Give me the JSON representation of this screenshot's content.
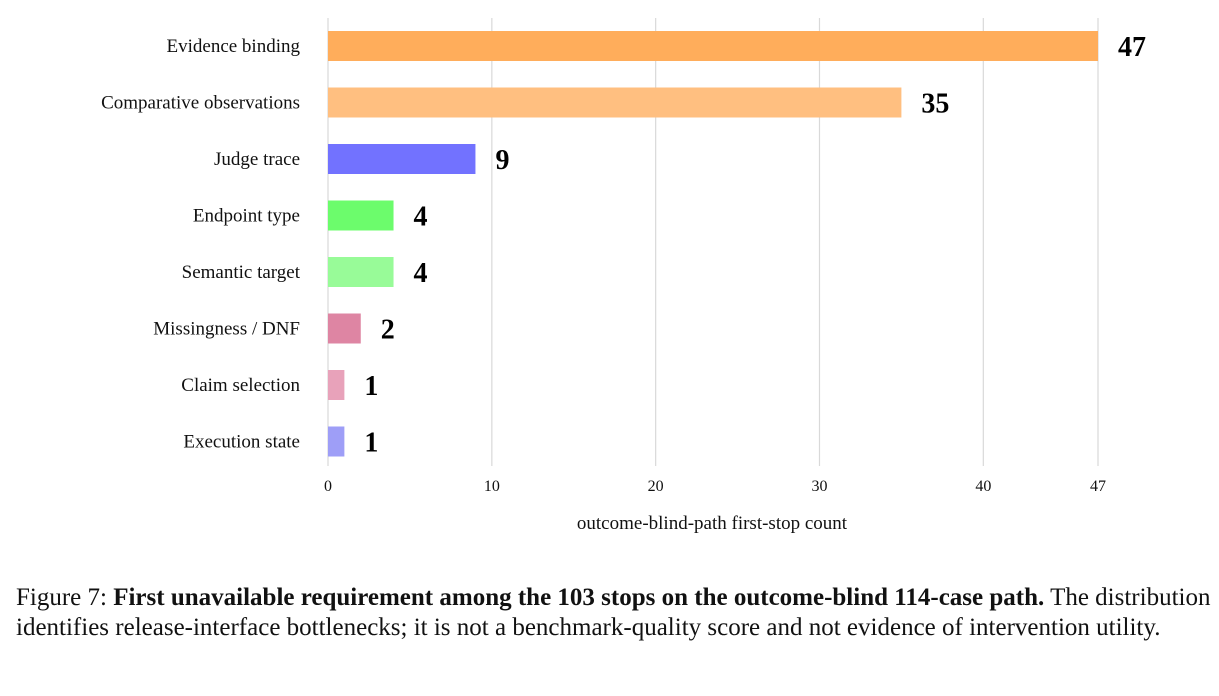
{
  "chart_data": {
    "type": "bar",
    "orientation": "horizontal",
    "categories": [
      "Evidence binding",
      "Comparative observations",
      "Judge trace",
      "Endpoint type",
      "Semantic target",
      "Missingness / DNF",
      "Claim selection",
      "Execution state"
    ],
    "values": [
      47,
      35,
      9,
      4,
      4,
      2,
      1,
      1
    ],
    "value_labels": [
      "47",
      "35",
      "9",
      "4",
      "4",
      "2",
      "1",
      "1"
    ],
    "colors": [
      "#ffad5b",
      "#ffbf80",
      "#7272ff",
      "#6cfc6c",
      "#98fb98",
      "#de85a3",
      "#e8a2ba",
      "#9e9ef7"
    ],
    "xlabel": "outcome-blind-path first-stop count",
    "ylabel": "",
    "xlim": [
      0,
      47
    ],
    "xticks": [
      0,
      10,
      20,
      30,
      40,
      47
    ],
    "xtick_labels": [
      "0",
      "10",
      "20",
      "30",
      "40",
      "47"
    ],
    "grid": "vertical",
    "legend": "none"
  },
  "caption": {
    "prefix": "Figure 7: ",
    "bold": "First unavailable requirement among the 103 stops on the outcome-blind 114-case path.",
    "rest": " The distribution identifies release-interface bottlenecks; it is not a benchmark-quality score and not evidence of intervention utility."
  }
}
